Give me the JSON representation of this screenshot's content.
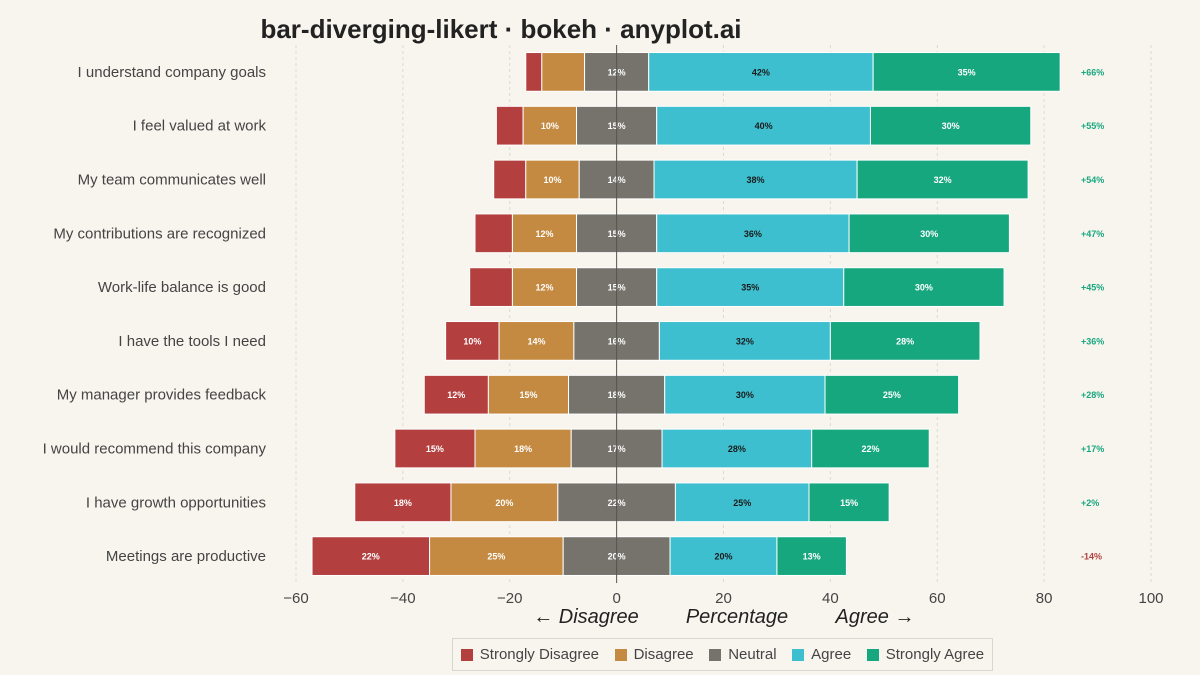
{
  "title": "bar-diverging-likert · bokeh · anyplot.ai",
  "chart_data": {
    "type": "bar",
    "orientation": "horizontal-diverging",
    "xlabel": "Percentage",
    "xlabel_left": "← Disagree",
    "xlabel_right": "Agree →",
    "xlim": [
      -60,
      100
    ],
    "xticks": [
      -60,
      -40,
      -20,
      0,
      20,
      40,
      60,
      80,
      100
    ],
    "grid": "vertical dashed",
    "legend_position": "bottom",
    "categories": [
      "I understand company goals",
      "I feel valued at work",
      "My team communicates well",
      "My contributions are recognized",
      "Work-life balance is good",
      "I have the tools I need",
      "My manager provides feedback",
      "I would recommend this company",
      "I have growth opportunities",
      "Meetings are productive"
    ],
    "series": [
      {
        "name": "Strongly Disagree",
        "color": "#B43F3F",
        "values": [
          3,
          5,
          6,
          7,
          8,
          10,
          12,
          15,
          18,
          22
        ]
      },
      {
        "name": "Disagree",
        "color": "#C48A41",
        "values": [
          8,
          10,
          10,
          12,
          12,
          14,
          15,
          18,
          20,
          25
        ]
      },
      {
        "name": "Neutral",
        "color": "#75736B",
        "values": [
          12,
          15,
          14,
          15,
          15,
          16,
          18,
          17,
          22,
          20
        ]
      },
      {
        "name": "Agree",
        "color": "#3EBFCF",
        "values": [
          42,
          40,
          38,
          36,
          35,
          32,
          30,
          28,
          25,
          20
        ]
      },
      {
        "name": "Strongly Agree",
        "color": "#17A77F",
        "values": [
          35,
          30,
          32,
          30,
          30,
          28,
          25,
          22,
          15,
          13
        ]
      }
    ],
    "net_scores": [
      "+66%",
      "+55%",
      "+54%",
      "+47%",
      "+45%",
      "+36%",
      "+28%",
      "+17%",
      "+2%",
      "-14%"
    ],
    "net_positive_color": "#17A77F",
    "net_negative_color": "#B43F3F"
  }
}
